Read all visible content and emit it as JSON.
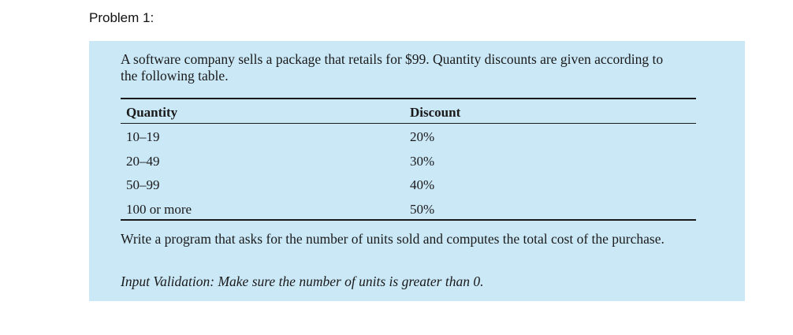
{
  "heading": "Problem 1:",
  "problem": {
    "intro": "A software company sells a package that retails for $99. Quantity discounts are given according to the following table.",
    "table": {
      "headers": [
        "Quantity",
        "Discount"
      ],
      "rows": [
        [
          "10–19",
          "20%"
        ],
        [
          "20–49",
          "30%"
        ],
        [
          "50–99",
          "40%"
        ],
        [
          "100 or more",
          "50%"
        ]
      ]
    },
    "task": "Write a program that asks for the number of units sold and computes the total cost of the purchase.",
    "validation": "Input Validation: Make sure the number of units is greater than 0."
  },
  "colors": {
    "box_background": "#cbe8f7",
    "text": "#1a1a1a"
  }
}
